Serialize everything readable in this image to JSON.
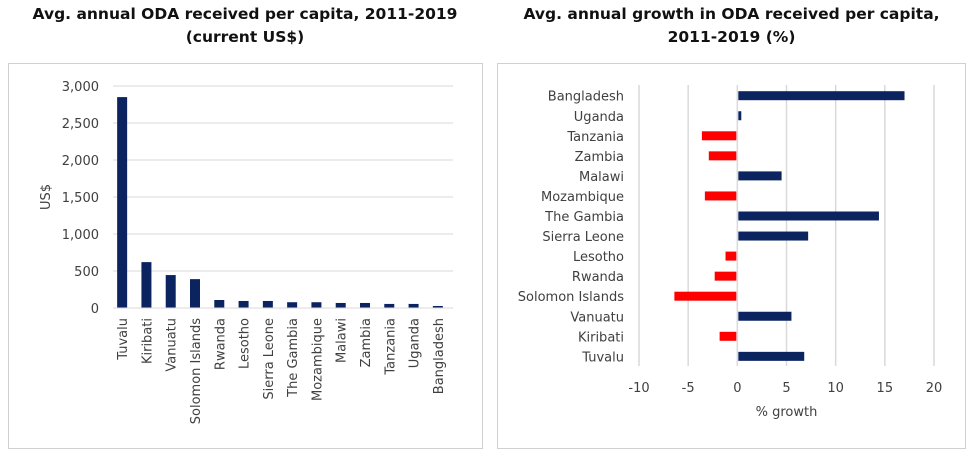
{
  "chart_data": [
    {
      "type": "bar",
      "title": "Avg. annual ODA received per capita, 2011-2019 (current US$)",
      "title_lines": [
        "Avg. annual ODA received per capita, 2011-2019",
        "(current US$)"
      ],
      "ylabel": "US$",
      "xlabel": "",
      "ylim": [
        0,
        3000
      ],
      "yticks": [
        0,
        500,
        1000,
        1500,
        2000,
        2500,
        3000
      ],
      "ytick_labels": [
        "0",
        "500",
        "1,000",
        "1,500",
        "2,000",
        "2,500",
        "3,000"
      ],
      "grid": true,
      "categories": [
        "Tuvalu",
        "Kiribati",
        "Vanuatu",
        "Solomon Islands",
        "Rwanda",
        "Lesotho",
        "Sierra Leone",
        "The Gambia",
        "Mozambique",
        "Malawi",
        "Zambia",
        "Tanzania",
        "Uganda",
        "Bangladesh"
      ],
      "values": [
        2850,
        620,
        445,
        390,
        108,
        95,
        95,
        78,
        78,
        68,
        68,
        55,
        55,
        27
      ],
      "color": "#0b2460"
    },
    {
      "type": "bar",
      "orientation": "horizontal",
      "title": "Avg. annual growth in ODA received per capita, 2011-2019 (%)",
      "title_lines": [
        "Avg. annual growth in ODA received per capita,",
        "2011-2019 (%)"
      ],
      "xlabel": "% growth",
      "ylabel": "",
      "xlim": [
        -10,
        20
      ],
      "xticks": [
        -10,
        -5,
        0,
        5,
        10,
        15,
        20
      ],
      "xtick_labels": [
        "-10",
        "-5",
        "0",
        "5",
        "10",
        "15",
        "20"
      ],
      "grid": true,
      "categories": [
        "Bangladesh",
        "Uganda",
        "Tanzania",
        "Zambia",
        "Malawi",
        "Mozambique",
        "The Gambia",
        "Sierra Leone",
        "Lesotho",
        "Rwanda",
        "Solomon Islands",
        "Vanuatu",
        "Kiribati",
        "Tuvalu"
      ],
      "values": [
        16.9,
        0.3,
        -3.5,
        -2.8,
        4.4,
        -3.2,
        14.3,
        7.1,
        -1.1,
        -2.2,
        -6.3,
        5.4,
        -1.7,
        6.7
      ],
      "positive_color": "#0b2460",
      "negative_color": "#ff0000"
    }
  ]
}
